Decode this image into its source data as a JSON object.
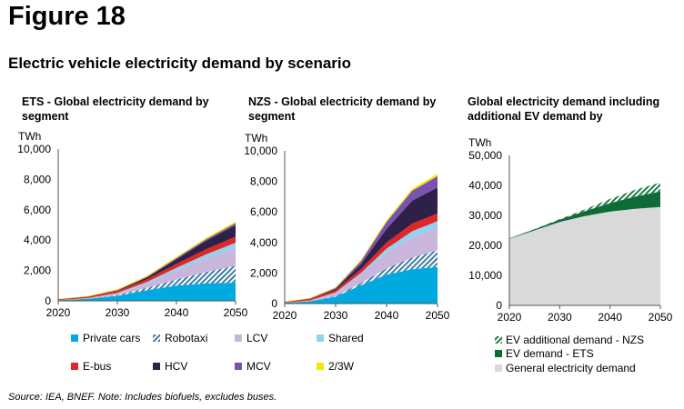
{
  "figure_label": "Figure 18",
  "subtitle": "Electric vehicle electricity demand by scenario",
  "source_note": "Source: IEA, BNEF. Note: Includes biofuels, excludes buses.",
  "colors": {
    "Private cars": "#00a9e0",
    "Robotaxi": "#3d7ea3",
    "LCV": "#c9b6dc",
    "Shared": "#8fd3f0",
    "E-bus": "#e02626",
    "HCV": "#2e2047",
    "MCV": "#7a52b3",
    "2/3W": "#f6e600",
    "General": "#d9d9d9",
    "EV demand - ETS": "#0f6b37",
    "EV additional demand - NZS": "#1f7a44"
  },
  "chart_data": [
    {
      "type": "area",
      "stacked": true,
      "title": "ETS - Global electricity demand by segment",
      "ylabel": "TWh",
      "ylim": [
        0,
        10000
      ],
      "yticks": [
        0,
        2000,
        4000,
        6000,
        8000,
        10000
      ],
      "ytick_labels": [
        "0",
        "2,000",
        "4,000",
        "6,000",
        "8,000",
        "10,000"
      ],
      "xticks": [
        2020,
        2030,
        2040,
        2050
      ],
      "x": [
        2020,
        2025,
        2030,
        2035,
        2040,
        2045,
        2050
      ],
      "series": [
        {
          "name": "Private cars",
          "values": [
            40,
            130,
            330,
            700,
            1000,
            1150,
            1200
          ]
        },
        {
          "name": "Robotaxi",
          "values": [
            0,
            0,
            40,
            150,
            400,
            750,
            1100
          ]
        },
        {
          "name": "LCV",
          "values": [
            10,
            40,
            120,
            300,
            600,
            900,
            1200
          ]
        },
        {
          "name": "Shared",
          "values": [
            2,
            8,
            30,
            90,
            180,
            260,
            330
          ]
        },
        {
          "name": "E-bus",
          "values": [
            50,
            90,
            130,
            180,
            260,
            340,
            400
          ]
        },
        {
          "name": "HCV",
          "values": [
            0,
            10,
            40,
            120,
            300,
            550,
            760
          ]
        },
        {
          "name": "MCV",
          "values": [
            0,
            4,
            15,
            40,
            80,
            110,
            130
          ]
        },
        {
          "name": "2/3W",
          "values": [
            30,
            40,
            60,
            70,
            80,
            90,
            100
          ]
        }
      ]
    },
    {
      "type": "area",
      "stacked": true,
      "title": "NZS - Global electricity demand by segment",
      "ylabel": "TWh",
      "ylim": [
        0,
        10000
      ],
      "yticks": [
        0,
        2000,
        4000,
        6000,
        8000,
        10000
      ],
      "ytick_labels": [
        "0",
        "2,000",
        "4,000",
        "6,000",
        "8,000",
        "10,000"
      ],
      "xticks": [
        2020,
        2030,
        2040,
        2050
      ],
      "x": [
        2020,
        2025,
        2030,
        2035,
        2040,
        2045,
        2050
      ],
      "series": [
        {
          "name": "Private cars",
          "values": [
            40,
            150,
            450,
            1200,
            1900,
            2250,
            2400
          ]
        },
        {
          "name": "Robotaxi",
          "values": [
            0,
            0,
            40,
            150,
            400,
            750,
            1100
          ]
        },
        {
          "name": "LCV",
          "values": [
            10,
            50,
            200,
            550,
            1050,
            1350,
            1450
          ]
        },
        {
          "name": "Shared",
          "values": [
            2,
            10,
            40,
            120,
            250,
            380,
            450
          ]
        },
        {
          "name": "E-bus",
          "values": [
            50,
            100,
            150,
            250,
            400,
            500,
            500
          ]
        },
        {
          "name": "HCV",
          "values": [
            0,
            15,
            80,
            320,
            900,
            1500,
            1700
          ]
        },
        {
          "name": "MCV",
          "values": [
            0,
            10,
            60,
            200,
            450,
            650,
            750
          ]
        },
        {
          "name": "2/3W",
          "values": [
            30,
            40,
            60,
            80,
            100,
            130,
            150
          ]
        }
      ]
    },
    {
      "type": "area",
      "stacked": true,
      "title": "Global electricity demand including additional EV demand by",
      "ylabel": "TWh",
      "ylim": [
        0,
        50000
      ],
      "yticks": [
        0,
        10000,
        20000,
        30000,
        40000,
        50000
      ],
      "ytick_labels": [
        "0",
        "10,000",
        "20,000",
        "30,000",
        "40,000",
        "50,000"
      ],
      "xticks": [
        2020,
        2030,
        2040,
        2050
      ],
      "x": [
        2020,
        2025,
        2030,
        2035,
        2040,
        2045,
        2050
      ],
      "series": [
        {
          "name": "General electricity demand",
          "values": [
            22200,
            25000,
            27800,
            29800,
            31300,
            32200,
            32800
          ]
        },
        {
          "name": "EV demand - ETS",
          "values": [
            150,
            400,
            800,
            1600,
            2800,
            4100,
            5200
          ]
        },
        {
          "name": "EV additional demand - NZS",
          "values": [
            0,
            50,
            200,
            600,
            1400,
            2200,
            3000
          ]
        }
      ]
    }
  ],
  "legend_main": [
    "Private cars",
    "Robotaxi",
    "LCV",
    "Shared",
    "E-bus",
    "HCV",
    "MCV",
    "2/3W"
  ],
  "legend_right": [
    "EV additional demand - NZS",
    "EV demand - ETS",
    "General electricity demand"
  ]
}
